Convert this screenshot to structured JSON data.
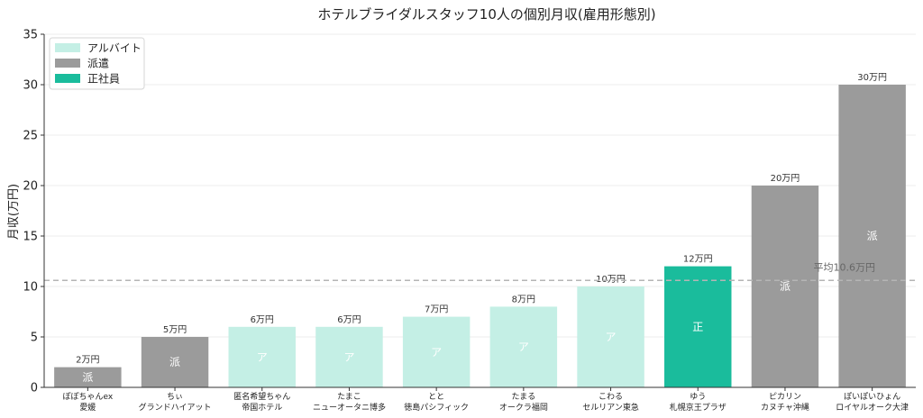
{
  "chart_data": {
    "type": "bar",
    "title": "ホテルブライダルスタッフ10人の個別月収(雇用形態別)",
    "ylabel": "月収(万円)",
    "xlabel": "",
    "ylim": [
      0,
      35
    ],
    "yticks": [
      0,
      5,
      10,
      15,
      20,
      25,
      30,
      35
    ],
    "grid": true,
    "legend_position": "top-left",
    "value_suffix": "万円",
    "types": [
      {
        "key": "part",
        "name": "アルバイト",
        "color": "#c4efe5",
        "abbr": "ア",
        "abbr_color": "#ffffff"
      },
      {
        "key": "dispatch",
        "name": "派遣",
        "color": "#9b9b9b",
        "abbr": "派",
        "abbr_color": "#ffffff"
      },
      {
        "key": "regular",
        "name": "正社員",
        "color": "#1abc9c",
        "abbr": "正",
        "abbr_color": "#ffffff"
      }
    ],
    "bars": [
      {
        "name": "ぽぽちゃんex",
        "place": "愛媛",
        "value": 2,
        "type": "dispatch"
      },
      {
        "name": "ちぃ",
        "place": "グランドハイアット",
        "value": 5,
        "type": "dispatch"
      },
      {
        "name": "匿名希望ちゃん",
        "place": "帝国ホテル",
        "value": 6,
        "type": "part"
      },
      {
        "name": "たまこ",
        "place": "ニューオータニ博多",
        "value": 6,
        "type": "part"
      },
      {
        "name": "とと",
        "place": "徳島パシフィック",
        "value": 7,
        "type": "part"
      },
      {
        "name": "たまる",
        "place": "オークラ福岡",
        "value": 8,
        "type": "part"
      },
      {
        "name": "こわる",
        "place": "セルリアン東急",
        "value": 10,
        "type": "part"
      },
      {
        "name": "ゆう",
        "place": "札幌京王プラザ",
        "value": 12,
        "type": "regular"
      },
      {
        "name": "ピカリン",
        "place": "カヌチャ沖縄",
        "value": 20,
        "type": "dispatch"
      },
      {
        "name": "ぽいぽいひょん",
        "place": "ロイヤルオーク大津",
        "value": 30,
        "type": "dispatch"
      }
    ],
    "average": {
      "value": 10.6,
      "label": "平均10.6万円",
      "color": "#b5b5b5"
    }
  }
}
